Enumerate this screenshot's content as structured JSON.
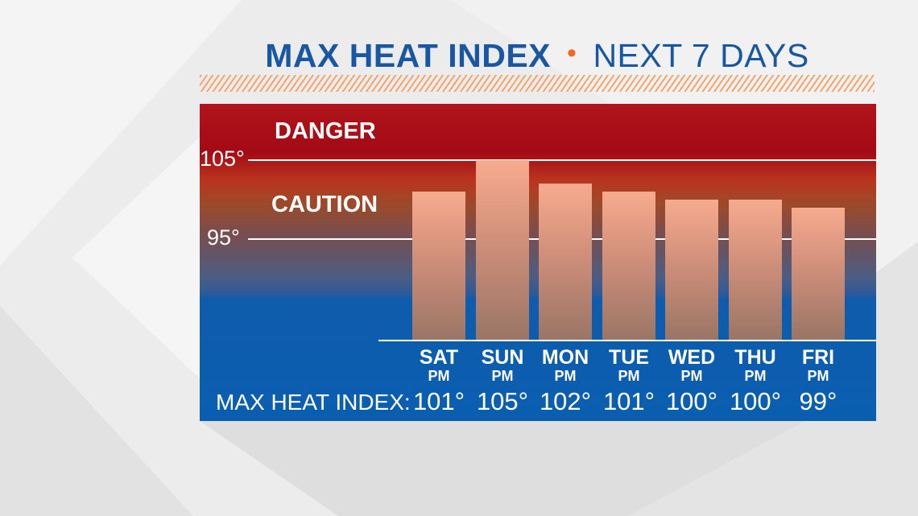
{
  "title": {
    "main": "MAX HEAT INDEX",
    "separator": "•",
    "sub": "NEXT 7 DAYS"
  },
  "colors": {
    "title_blue": "#1957a3",
    "accent_orange": "#ee6a22",
    "danger_red": "#a40a15",
    "panel_blue": "#0a5eb0",
    "bar_top": "#f7ab8e",
    "bar_bottom": "#9a7566"
  },
  "zones": {
    "danger": "DANGER",
    "caution": "CAUTION"
  },
  "row_label": "MAX HEAT INDEX:",
  "chart_data": {
    "type": "bar",
    "title": "MAX HEAT INDEX • NEXT 7 DAYS",
    "categories": [
      "SAT",
      "SUN",
      "MON",
      "TUE",
      "WED",
      "THU",
      "FRI"
    ],
    "category_sublabels": [
      "PM",
      "PM",
      "PM",
      "PM",
      "PM",
      "PM",
      "PM"
    ],
    "values": [
      101,
      105,
      102,
      101,
      100,
      100,
      99
    ],
    "value_labels": [
      "101°",
      "105°",
      "102°",
      "101°",
      "100°",
      "100°",
      "99°"
    ],
    "reference_lines": [
      {
        "value": 105,
        "label": "105°"
      },
      {
        "value": 95,
        "label": "95°"
      }
    ],
    "ylim": [
      82.3,
      107.5
    ],
    "grid": false,
    "legend": "none"
  }
}
